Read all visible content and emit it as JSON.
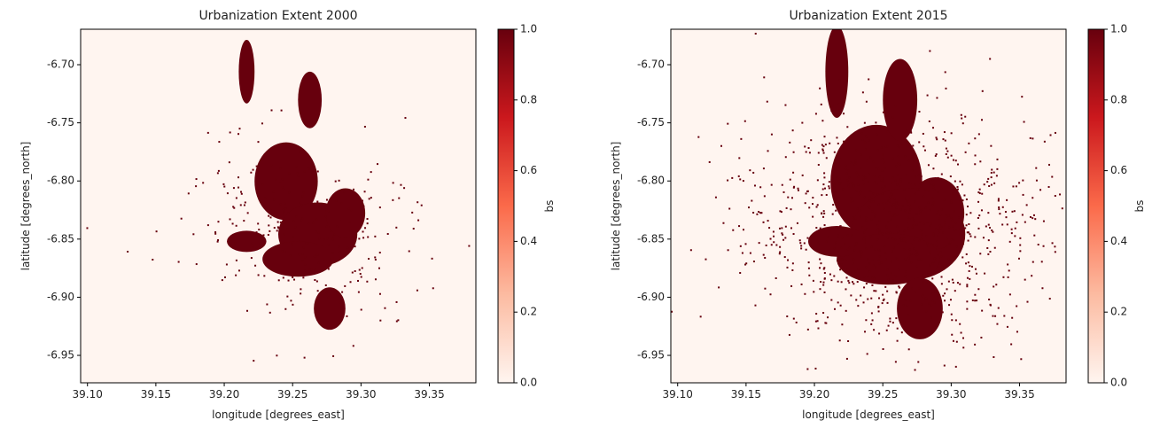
{
  "chart_data": [
    {
      "type": "image",
      "title": "Urbanization Extent 2000",
      "xlabel": "longitude [degrees_east]",
      "ylabel": "latitude [degrees_north]",
      "xlim": [
        39.095,
        39.384
      ],
      "ylim": [
        -6.9736,
        -6.6695
      ],
      "xticks": [
        {
          "value": 39.1,
          "label": "39.10"
        },
        {
          "value": 39.15,
          "label": "39.15"
        },
        {
          "value": 39.2,
          "label": "39.20"
        },
        {
          "value": 39.25,
          "label": "39.25"
        },
        {
          "value": 39.3,
          "label": "39.30"
        },
        {
          "value": 39.35,
          "label": "39.35"
        }
      ],
      "yticks": [
        {
          "value": -6.95,
          "label": "-6.95"
        },
        {
          "value": -6.9,
          "label": "-6.90"
        },
        {
          "value": -6.85,
          "label": "-6.85"
        },
        {
          "value": -6.8,
          "label": "-6.80"
        },
        {
          "value": -6.75,
          "label": "-6.75"
        },
        {
          "value": -6.7,
          "label": "-6.70"
        }
      ],
      "colorbar": {
        "label": "bs",
        "lim": [
          0,
          1
        ],
        "colors": [
          "#fff5f0",
          "#fcbba1",
          "#fb6a4a",
          "#cb181d",
          "#67000d"
        ],
        "ticks": [
          {
            "value": 0,
            "label": "0.0"
          },
          {
            "value": 0.2,
            "label": "0.2"
          },
          {
            "value": 0.4,
            "label": "0.4"
          },
          {
            "value": 0.6,
            "label": "0.6"
          },
          {
            "value": 0.8,
            "label": "0.8"
          },
          {
            "value": 1,
            "label": "1.0"
          }
        ]
      }
    },
    {
      "type": "image",
      "title": "Urbanization Extent 2015",
      "xlabel": "longitude [degrees_east]",
      "ylabel": "latitude [degrees_north]",
      "xlim": [
        39.095,
        39.384
      ],
      "ylim": [
        -6.9736,
        -6.6695
      ],
      "xticks": [
        {
          "value": 39.1,
          "label": "39.10"
        },
        {
          "value": 39.15,
          "label": "39.15"
        },
        {
          "value": 39.2,
          "label": "39.20"
        },
        {
          "value": 39.25,
          "label": "39.25"
        },
        {
          "value": 39.3,
          "label": "39.30"
        },
        {
          "value": 39.35,
          "label": "39.35"
        }
      ],
      "yticks": [
        {
          "value": -6.95,
          "label": "-6.95"
        },
        {
          "value": -6.9,
          "label": "-6.90"
        },
        {
          "value": -6.85,
          "label": "-6.85"
        },
        {
          "value": -6.8,
          "label": "-6.80"
        },
        {
          "value": -6.75,
          "label": "-6.75"
        },
        {
          "value": -6.7,
          "label": "-6.70"
        }
      ],
      "colorbar": {
        "label": "bs",
        "lim": [
          0,
          1
        ],
        "colors": [
          "#fff5f0",
          "#fcbba1",
          "#fb6a4a",
          "#cb181d",
          "#67000d"
        ],
        "ticks": [
          {
            "value": 0,
            "label": "0.0"
          },
          {
            "value": 0.2,
            "label": "0.2"
          },
          {
            "value": 0.4,
            "label": "0.4"
          },
          {
            "value": 0.6,
            "label": "0.6"
          },
          {
            "value": 0.8,
            "label": "0.8"
          },
          {
            "value": 1,
            "label": "1.0"
          }
        ]
      }
    }
  ]
}
